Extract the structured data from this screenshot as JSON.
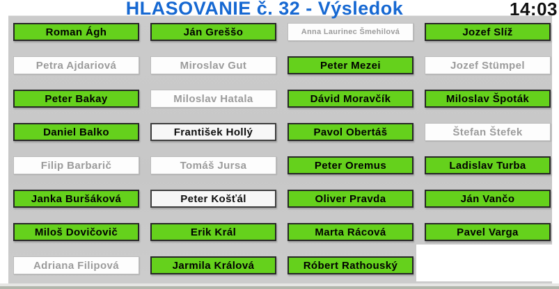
{
  "header": {
    "title": "HLASOVANIE č. 32 - Výsledok",
    "time": "14:03"
  },
  "colors": {
    "title_blue": "#1668d2",
    "vote_green": "#65d11c",
    "board_gray": "#c9c9c9",
    "inactive_text_gray": "#9b9b9b"
  },
  "members": [
    {
      "name": "Roman Ágh",
      "style": "green"
    },
    {
      "name": "Ján Greššo",
      "style": "green"
    },
    {
      "name": "Anna Laurinec Šmehilová",
      "style": "dimmed",
      "small": true
    },
    {
      "name": "Jozef Slíž",
      "style": "green"
    },
    {
      "name": "Petra Ajdariová",
      "style": "dimmed"
    },
    {
      "name": "Miroslav Gut",
      "style": "dimmed"
    },
    {
      "name": "Peter Mezei",
      "style": "green"
    },
    {
      "name": "Jozef Stümpel",
      "style": "dimmed"
    },
    {
      "name": "Peter Bakay",
      "style": "green"
    },
    {
      "name": "Miloslav Hatala",
      "style": "dimmed"
    },
    {
      "name": "Dávid Moravčík",
      "style": "green"
    },
    {
      "name": "Miloslav Špoták",
      "style": "green"
    },
    {
      "name": "Daniel Balko",
      "style": "green"
    },
    {
      "name": "František Hollý",
      "style": "outlined"
    },
    {
      "name": "Pavol Obertáš",
      "style": "green"
    },
    {
      "name": "Štefan Štefek",
      "style": "dimmed"
    },
    {
      "name": "Filip Barbarič",
      "style": "dimmed"
    },
    {
      "name": "Tomáš Jursa",
      "style": "dimmed"
    },
    {
      "name": "Peter Oremus",
      "style": "green"
    },
    {
      "name": "Ladislav Turba",
      "style": "green"
    },
    {
      "name": "Janka Buršáková",
      "style": "green"
    },
    {
      "name": "Peter Košťál",
      "style": "outlined"
    },
    {
      "name": "Oliver Pravda",
      "style": "green"
    },
    {
      "name": "Ján Vančo",
      "style": "green"
    },
    {
      "name": "Miloš Dovičovič",
      "style": "green"
    },
    {
      "name": "Erik Král",
      "style": "green"
    },
    {
      "name": "Marta Rácová",
      "style": "green"
    },
    {
      "name": "Pavel Varga",
      "style": "green"
    },
    {
      "name": "Adriana Filipová",
      "style": "dimmed"
    },
    {
      "name": "Jarmila Králová",
      "style": "green"
    },
    {
      "name": "Róbert Rathouský",
      "style": "green"
    }
  ]
}
